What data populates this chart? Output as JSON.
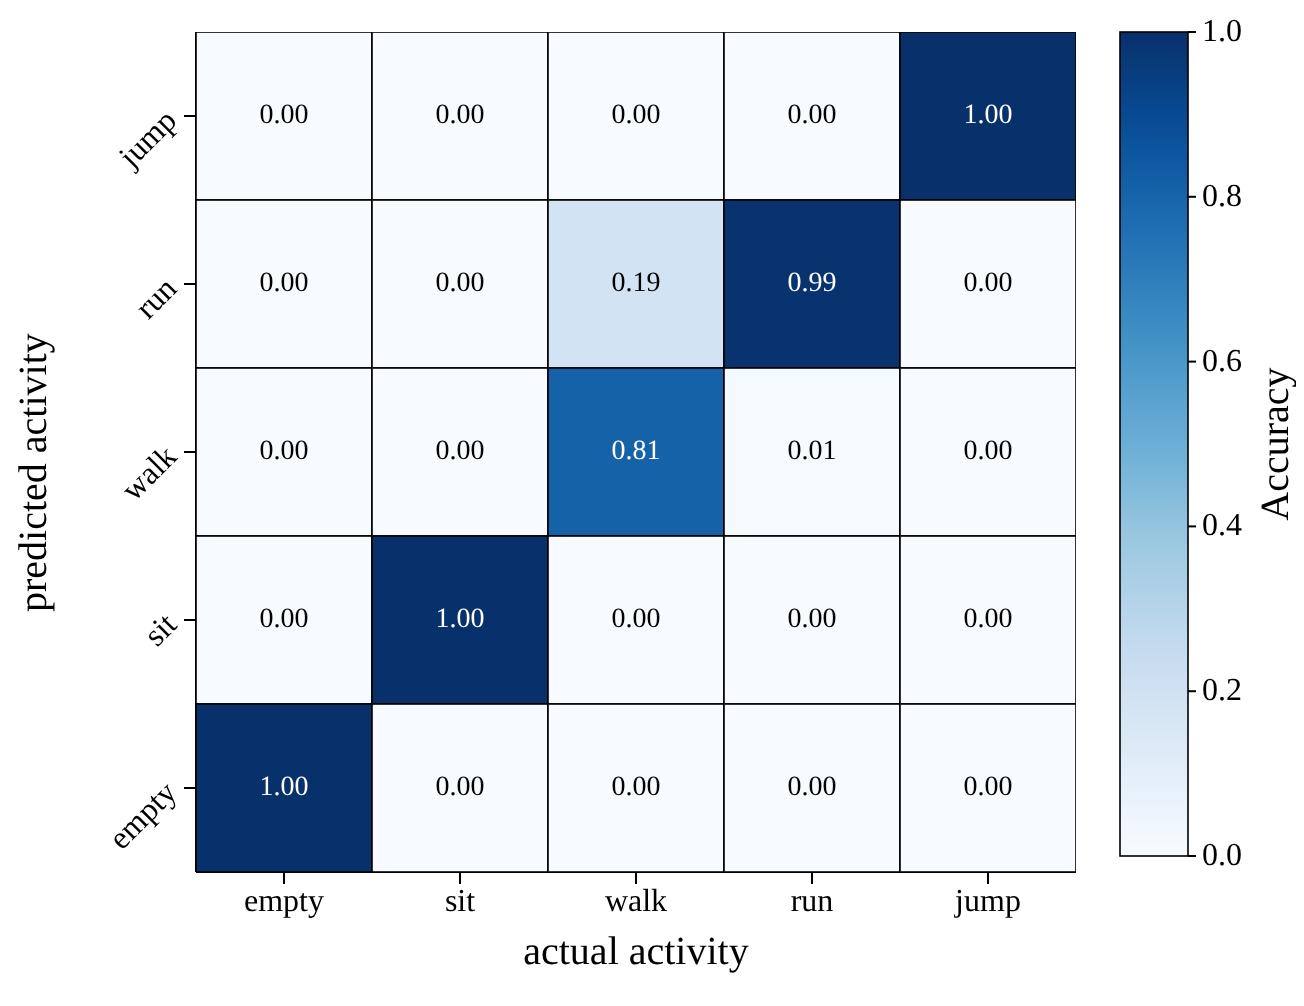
{
  "chart_data": {
    "type": "heatmap",
    "xlabel": "actual activity",
    "ylabel": "predicted activity",
    "clabel": "Accuracy",
    "categories": [
      "empty",
      "sit",
      "walk",
      "run",
      "jump"
    ],
    "y_categories": [
      "jump",
      "run",
      "walk",
      "sit",
      "empty"
    ],
    "cells": [
      [
        0,
        0,
        0,
        0,
        1
      ],
      [
        0,
        0,
        0.19,
        0.99,
        0
      ],
      [
        0,
        0,
        0.81,
        0.01,
        0
      ],
      [
        0,
        1,
        0,
        0,
        0
      ],
      [
        1,
        0,
        0,
        0,
        0
      ]
    ],
    "cell_labels": [
      [
        "0.00",
        "0.00",
        "0.00",
        "0.00",
        "1.00"
      ],
      [
        "0.00",
        "0.00",
        "0.19",
        "0.99",
        "0.00"
      ],
      [
        "0.00",
        "0.00",
        "0.81",
        "0.01",
        "0.00"
      ],
      [
        "0.00",
        "1.00",
        "0.00",
        "0.00",
        "0.00"
      ],
      [
        "1.00",
        "0.00",
        "0.00",
        "0.00",
        "0.00"
      ]
    ],
    "clim": [
      0,
      1
    ],
    "cticks": [
      {
        "value": 0,
        "label": "0.0"
      },
      {
        "value": 0.2,
        "label": "0.2"
      },
      {
        "value": 0.4,
        "label": "0.4"
      },
      {
        "value": 0.6,
        "label": "0.6"
      },
      {
        "value": 0.8,
        "label": "0.8"
      },
      {
        "value": 1,
        "label": "1.0"
      }
    ]
  }
}
